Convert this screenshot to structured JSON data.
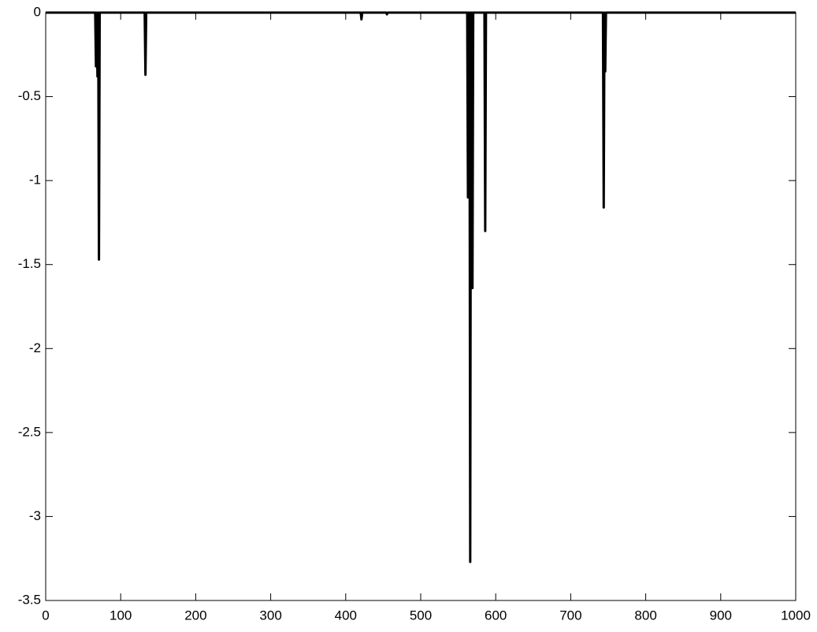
{
  "chart_data": {
    "type": "line",
    "x": [
      0,
      66,
      67,
      68,
      69,
      70,
      71,
      72,
      73,
      74,
      75,
      132,
      133,
      134,
      420,
      421,
      422,
      454,
      455,
      456,
      562,
      563,
      564,
      565,
      566,
      567,
      568,
      569,
      570,
      571,
      585,
      586,
      587,
      743,
      744,
      745,
      746,
      747,
      748,
      1000
    ],
    "series": [
      {
        "color": "#000000",
        "values": [
          0,
          0,
          -0.32,
          0,
          -0.38,
          0,
          -1.47,
          0,
          0,
          0,
          0,
          0,
          -0.37,
          0,
          0,
          -0.04,
          0,
          0,
          -0.01,
          0,
          0,
          -1.1,
          0,
          0,
          -3.27,
          0,
          0,
          -1.64,
          0,
          0,
          0,
          -1.3,
          0,
          0,
          -1.16,
          0,
          -0.35,
          0,
          0,
          0
        ]
      }
    ],
    "xlim": [
      0,
      1000
    ],
    "xticks": [
      0,
      100,
      200,
      300,
      400,
      500,
      600,
      700,
      800,
      900,
      1000
    ],
    "ylim": [
      -3.5,
      0
    ],
    "yticks": [
      -3.5,
      -3,
      -2.5,
      -2,
      -1.5,
      -1,
      -0.5,
      0
    ],
    "grid": false
  }
}
